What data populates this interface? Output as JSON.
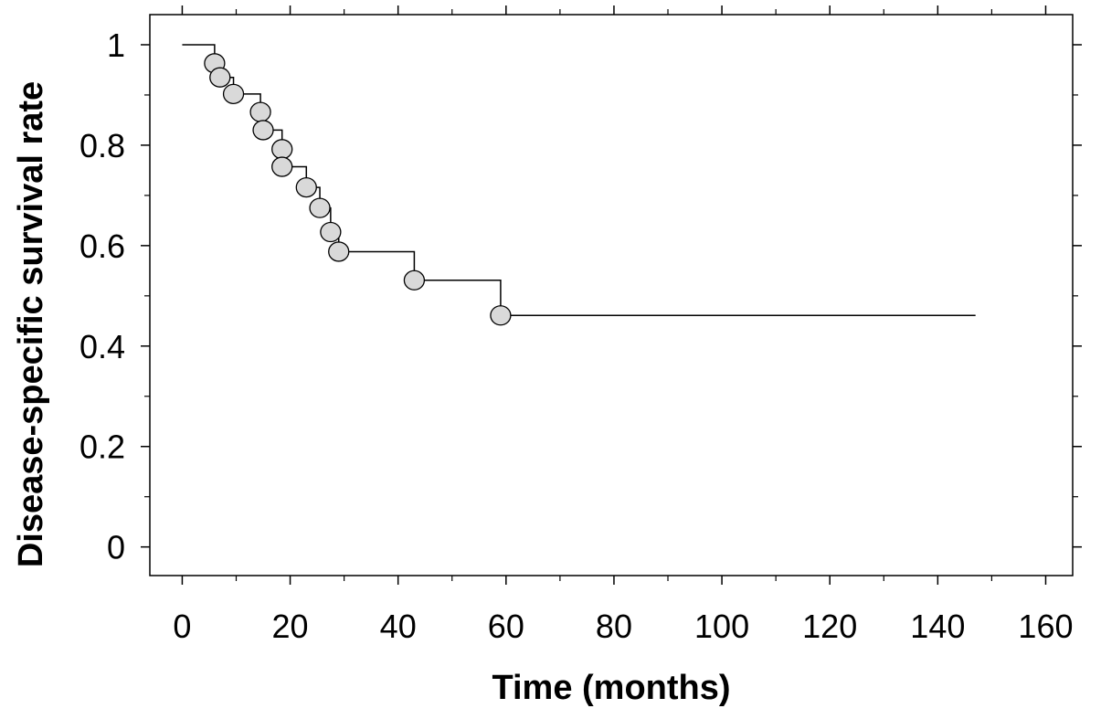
{
  "chart_data": {
    "type": "line",
    "title": "",
    "xlabel": "Time (months)",
    "ylabel": "Disease-specific survival rate",
    "xlim": [
      -6,
      165
    ],
    "ylim": [
      -0.057,
      1.06
    ],
    "xticks": [
      0,
      20,
      40,
      60,
      80,
      100,
      120,
      140,
      160
    ],
    "xtick_labels": [
      "0",
      "20",
      "40",
      "60",
      "80",
      "100",
      "120",
      "140",
      "160"
    ],
    "yticks": [
      0,
      0.2,
      0.4,
      0.6,
      0.8,
      1
    ],
    "ytick_labels": [
      "0",
      "0.2",
      "0.4",
      "0.6",
      "0.8",
      "1"
    ],
    "grid": false,
    "legend": "none",
    "series": [
      {
        "style": "step",
        "color": "#000000",
        "marker_color": "#d9d9d9",
        "x": [
          0,
          6,
          7,
          9.5,
          14.5,
          15,
          18.5,
          18.5,
          23,
          25.5,
          27.5,
          29,
          43,
          59,
          147
        ],
        "y": [
          1.0,
          0.963,
          0.935,
          0.902,
          0.866,
          0.83,
          0.792,
          0.757,
          0.716,
          0.675,
          0.627,
          0.588,
          0.531,
          0.461,
          0.461
        ],
        "markers": [
          {
            "x": 6,
            "y": 0.963
          },
          {
            "x": 7,
            "y": 0.935
          },
          {
            "x": 9.5,
            "y": 0.902
          },
          {
            "x": 14.5,
            "y": 0.866
          },
          {
            "x": 15,
            "y": 0.83
          },
          {
            "x": 18.5,
            "y": 0.792
          },
          {
            "x": 18.5,
            "y": 0.757
          },
          {
            "x": 23,
            "y": 0.716
          },
          {
            "x": 25.5,
            "y": 0.675
          },
          {
            "x": 27.5,
            "y": 0.627
          },
          {
            "x": 29,
            "y": 0.588
          },
          {
            "x": 43,
            "y": 0.531
          },
          {
            "x": 59,
            "y": 0.461
          }
        ]
      }
    ]
  }
}
